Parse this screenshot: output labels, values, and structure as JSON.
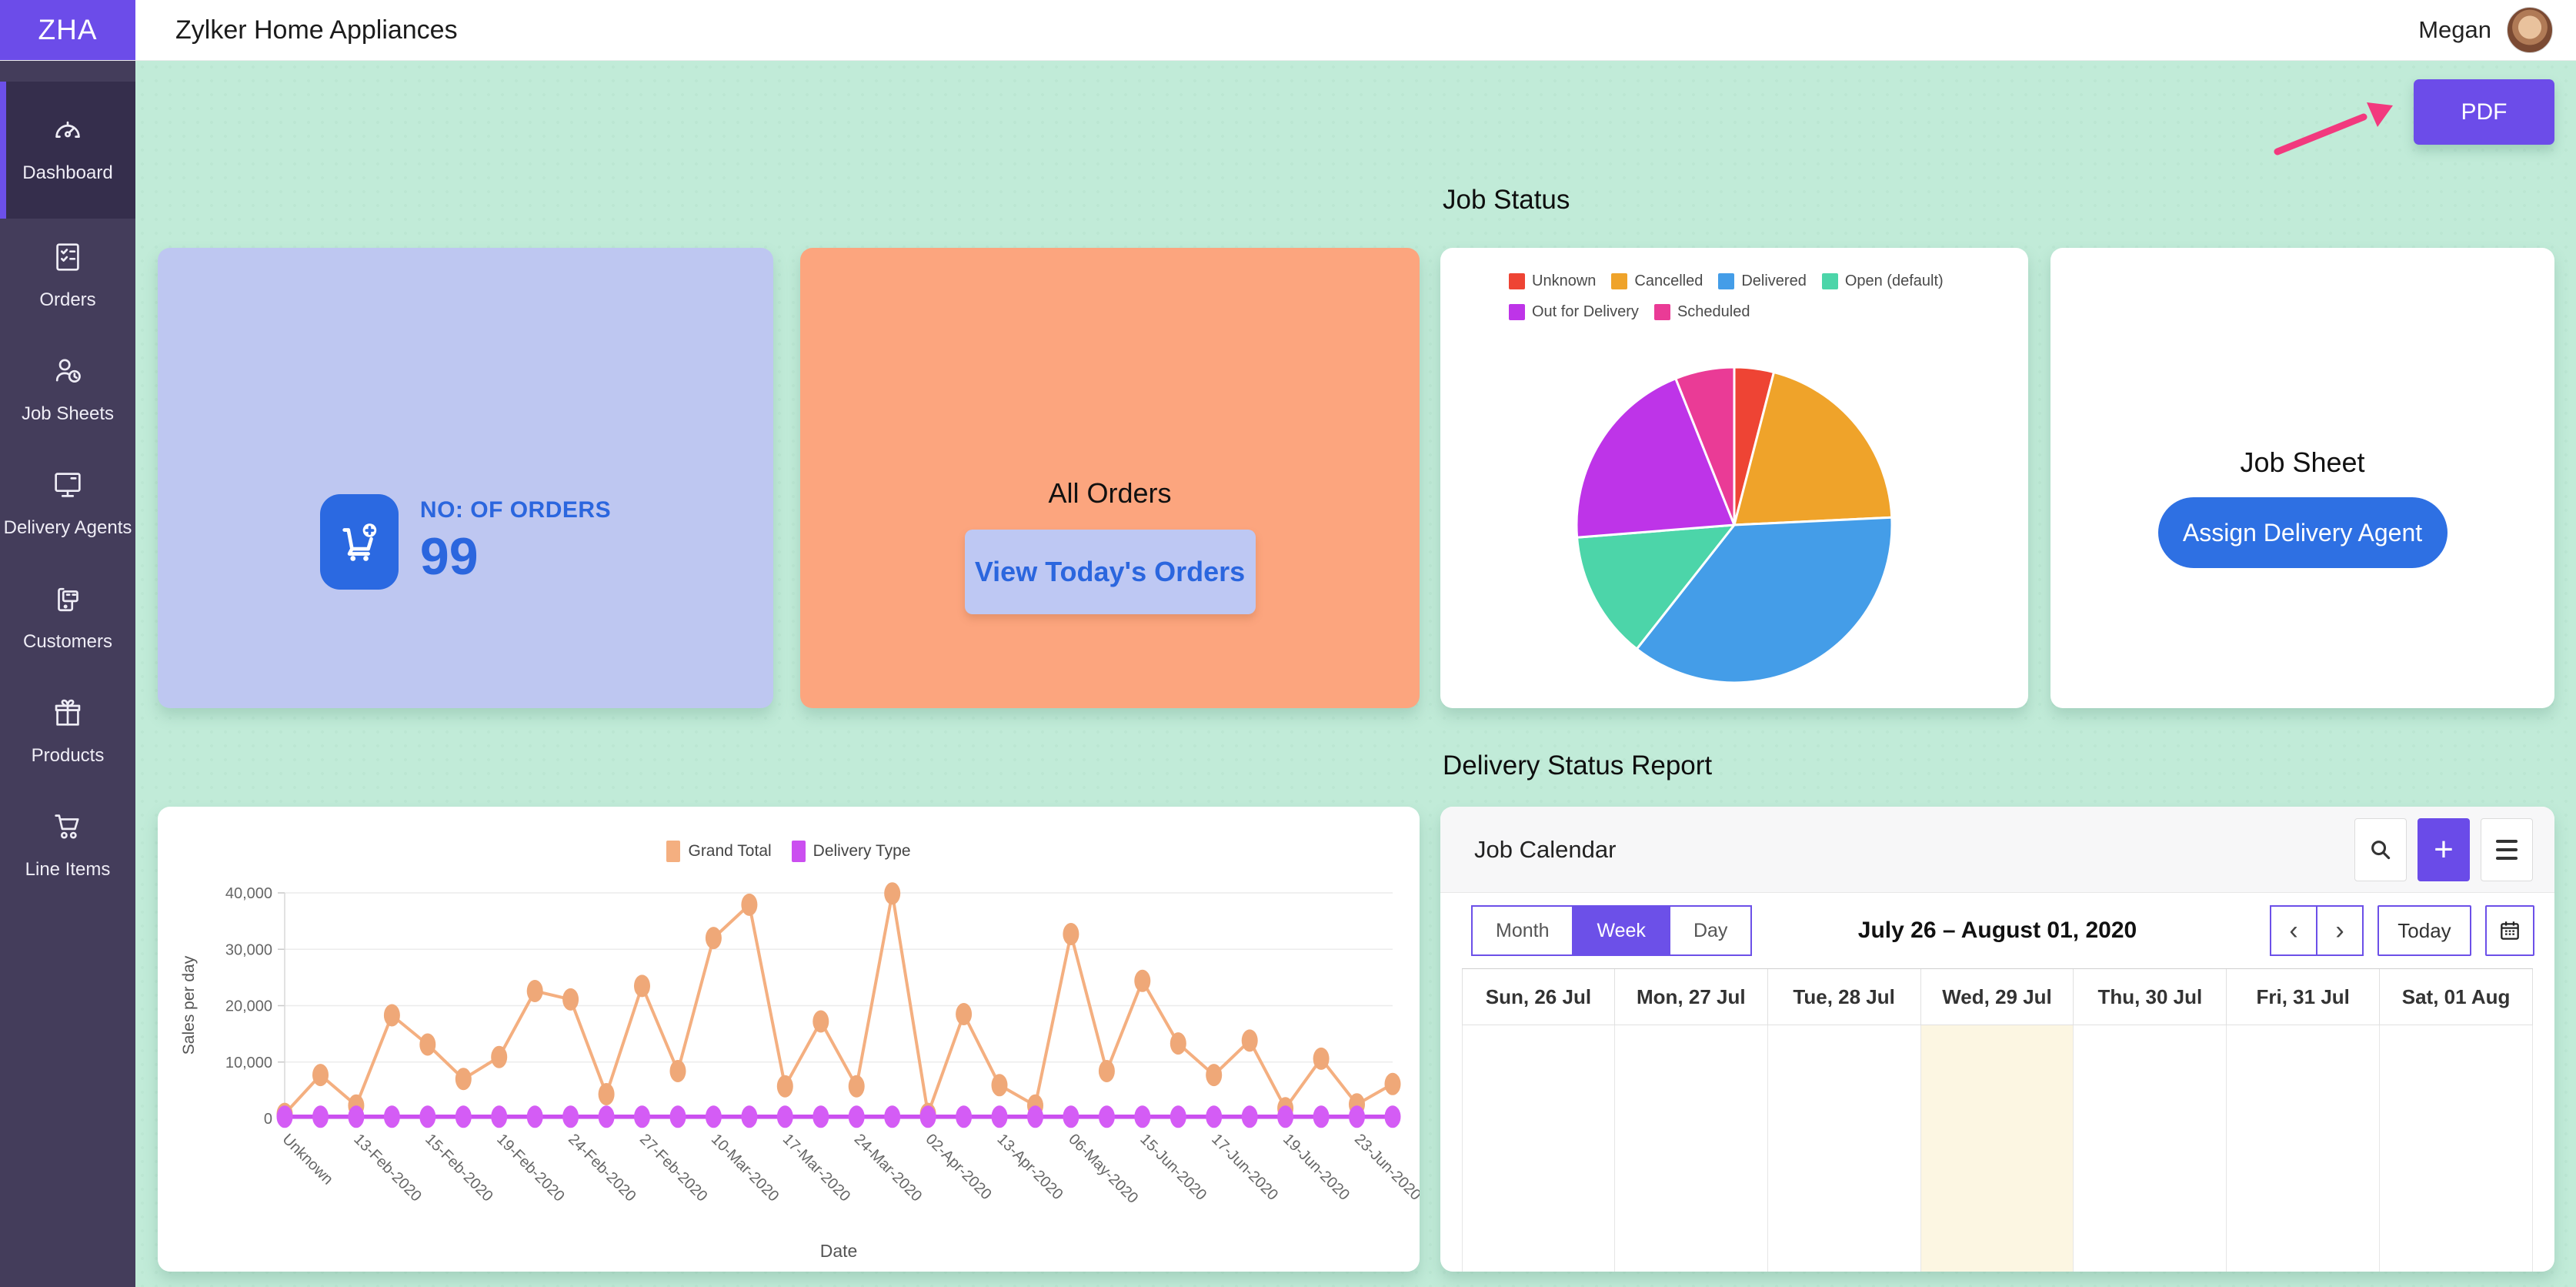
{
  "topbar": {
    "logo": "ZHA",
    "title": "Zylker Home Appliances",
    "user": "Megan"
  },
  "sidebar": {
    "items": [
      {
        "label": "Dashboard",
        "icon": "gauge-icon",
        "active": true
      },
      {
        "label": "Orders",
        "icon": "order-list-icon",
        "active": false
      },
      {
        "label": "Job Sheets",
        "icon": "person-clock-icon",
        "active": false
      },
      {
        "label": "Delivery Agents",
        "icon": "monitor-icon",
        "active": false
      },
      {
        "label": "Customers",
        "icon": "card-phone-icon",
        "active": false
      },
      {
        "label": "Products",
        "icon": "gift-icon",
        "active": false
      },
      {
        "label": "Line Items",
        "icon": "cart-icon",
        "active": false
      }
    ]
  },
  "main": {
    "pdf_label": "PDF"
  },
  "sections": {
    "job_status": "Job Status",
    "delivery_status": "Delivery Status Report"
  },
  "cards": {
    "orders_count": {
      "label": "NO: OF ORDERS",
      "value": "99"
    },
    "all_orders": {
      "title": "All Orders",
      "button": "View Today's Orders"
    },
    "job_sheet": {
      "title": "Job Sheet",
      "button": "Assign Delivery Agent"
    }
  },
  "chart_data": [
    {
      "type": "pie",
      "title": "Job Status",
      "labels": [
        "Unknown",
        "Cancelled",
        "Delivered",
        "Open (default)",
        "Out for Delivery",
        "Scheduled"
      ],
      "values": [
        4,
        20,
        36,
        13,
        20,
        6
      ],
      "colors": [
        "#EE4434",
        "#EFA32A",
        "#449DE8",
        "#4CD5A9",
        "#BE34E8",
        "#EA3B96"
      ],
      "legend_position": "top"
    },
    {
      "type": "line",
      "xlabel": "Date",
      "ylabel": "Sales per day",
      "ylim": [
        0,
        40000
      ],
      "ytick_step": 10000,
      "x_labels": [
        "Unknown",
        "13-Feb-2020",
        "15-Feb-2020",
        "19-Feb-2020",
        "24-Feb-2020",
        "27-Feb-2020",
        "10-Mar-2020",
        "17-Mar-2020",
        "24-Mar-2020",
        "02-Apr-2020",
        "13-Apr-2020",
        "06-May-2020",
        "15-Jun-2020",
        "17-Jun-2020",
        "19-Jun-2020",
        "23-Jun-2020"
      ],
      "label_step": 2,
      "series": [
        {
          "name": "Grand Total",
          "color": "#F4AF80",
          "values": [
            800,
            7700,
            2300,
            18300,
            13100,
            7000,
            10900,
            22600,
            21100,
            4300,
            23500,
            8400,
            32000,
            37900,
            5700,
            17200,
            5700,
            39900,
            800,
            18500,
            5900,
            2300,
            32700,
            8400,
            24400,
            13300,
            7700,
            13800,
            1800,
            10600,
            2500,
            6100
          ]
        },
        {
          "name": "Delivery Type",
          "color": "#CB4FF0",
          "values": [
            300,
            300,
            300,
            300,
            300,
            300,
            300,
            300,
            300,
            300,
            300,
            300,
            300,
            300,
            300,
            300,
            300,
            300,
            300,
            300,
            300,
            300,
            300,
            300,
            300,
            300,
            300,
            300,
            300,
            300,
            300,
            300
          ]
        }
      ],
      "legend_position": "top",
      "grid": true
    }
  ],
  "calendar": {
    "title": "Job Calendar",
    "views": [
      "Month",
      "Week",
      "Day"
    ],
    "active_view": "Week",
    "range_label": "July 26 – August 01, 2020",
    "today_label": "Today",
    "prev_icon": "‹",
    "next_icon": "›",
    "plus_icon": "+",
    "days": [
      "Sun, 26 Jul",
      "Mon, 27 Jul",
      "Tue, 28 Jul",
      "Wed, 29 Jul",
      "Thu, 30 Jul",
      "Fri, 31 Jul",
      "Sat, 01 Aug"
    ],
    "highlight_index": 3
  },
  "colors": {
    "accent_purple": "#6C4CE9",
    "mint_background": "#C1EBD8",
    "periwinkle_card": "#BEC7F1",
    "salmon_card": "#FCA57E",
    "blue_action": "#2B69E1",
    "arrow_pink": "#F2397E",
    "calendar_highlight": "#FCF6E2",
    "sidebar_bg": "#443D5B"
  }
}
